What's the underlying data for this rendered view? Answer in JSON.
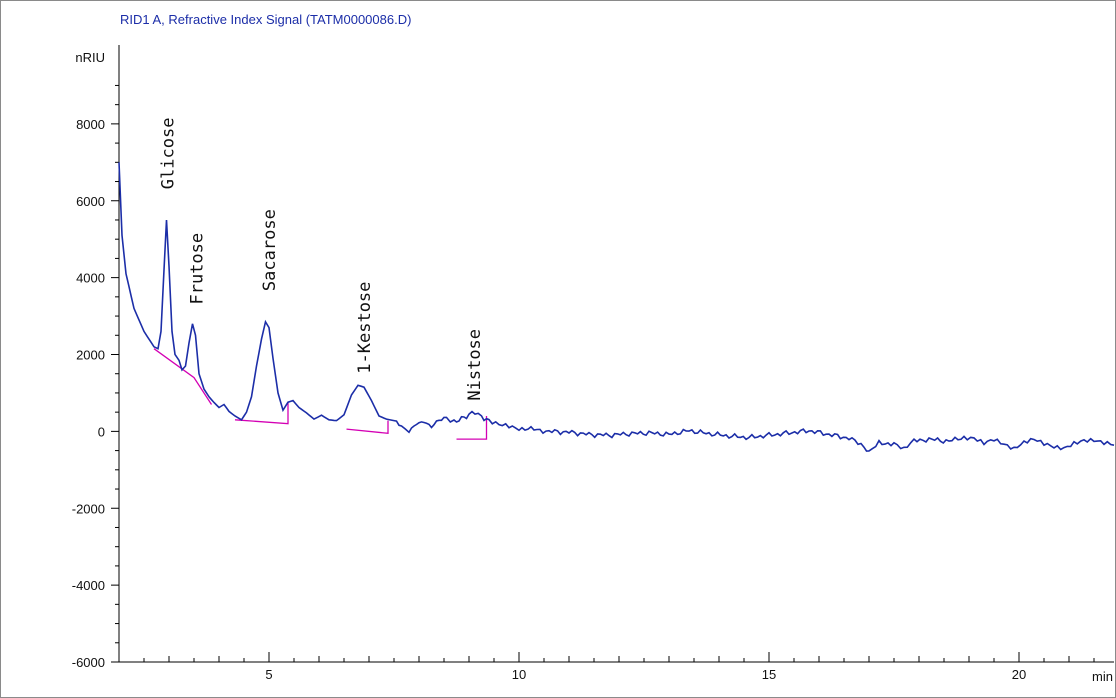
{
  "chart_data": {
    "type": "line",
    "title": "RID1 A, Refractive Index Signal (TATM0000086.D)",
    "ylabel": "nRIU",
    "xlabel": "min",
    "xlim": [
      2.0,
      21.9
    ],
    "ylim": [
      -6000,
      10000
    ],
    "grid": false,
    "x_ticks": [
      5,
      10,
      15,
      20
    ],
    "y_ticks": [
      -6000,
      -4000,
      -2000,
      0,
      2000,
      4000,
      6000,
      8000
    ],
    "series": [
      {
        "color": "#1c2ea8",
        "points": [
          [
            2.0,
            7000
          ],
          [
            2.06,
            5100
          ],
          [
            2.14,
            4100
          ],
          [
            2.3,
            3200
          ],
          [
            2.5,
            2600
          ],
          [
            2.7,
            2200
          ],
          [
            2.78,
            2150
          ],
          [
            2.84,
            2600
          ],
          [
            2.9,
            4200
          ],
          [
            2.95,
            5500
          ],
          [
            3.0,
            4300
          ],
          [
            3.06,
            2600
          ],
          [
            3.12,
            2000
          ],
          [
            3.2,
            1850
          ],
          [
            3.26,
            1600
          ],
          [
            3.33,
            1700
          ],
          [
            3.4,
            2300
          ],
          [
            3.47,
            2800
          ],
          [
            3.53,
            2500
          ],
          [
            3.6,
            1500
          ],
          [
            3.7,
            1100
          ],
          [
            3.8,
            900
          ],
          [
            3.9,
            750
          ],
          [
            4.0,
            620
          ],
          [
            4.1,
            700
          ],
          [
            4.2,
            520
          ],
          [
            4.32,
            400
          ],
          [
            4.45,
            300
          ],
          [
            4.55,
            500
          ],
          [
            4.65,
            900
          ],
          [
            4.75,
            1700
          ],
          [
            4.85,
            2400
          ],
          [
            4.93,
            2850
          ],
          [
            5.0,
            2700
          ],
          [
            5.08,
            1900
          ],
          [
            5.18,
            1000
          ],
          [
            5.28,
            550
          ],
          [
            5.38,
            760
          ],
          [
            5.48,
            800
          ],
          [
            5.6,
            620
          ],
          [
            5.75,
            480
          ],
          [
            5.9,
            320
          ],
          [
            6.05,
            420
          ],
          [
            6.2,
            300
          ],
          [
            6.35,
            280
          ],
          [
            6.5,
            430
          ],
          [
            6.65,
            950
          ],
          [
            6.78,
            1200
          ],
          [
            6.9,
            1150
          ],
          [
            7.05,
            800
          ],
          [
            7.2,
            400
          ],
          [
            7.35,
            320
          ],
          [
            7.5,
            280
          ],
          [
            7.65,
            150
          ],
          [
            7.8,
            0
          ],
          [
            7.95,
            200
          ],
          [
            8.1,
            250
          ],
          [
            8.25,
            120
          ],
          [
            8.4,
            300
          ],
          [
            8.55,
            350
          ],
          [
            8.7,
            250
          ],
          [
            8.85,
            330
          ],
          [
            9.0,
            430
          ],
          [
            9.12,
            480
          ],
          [
            9.25,
            400
          ],
          [
            9.4,
            250
          ],
          [
            9.6,
            180
          ],
          [
            9.8,
            150
          ],
          [
            10.0,
            80
          ],
          [
            10.3,
            50
          ],
          [
            10.6,
            0
          ],
          [
            11.0,
            -20
          ],
          [
            11.4,
            -80
          ],
          [
            11.8,
            -100
          ],
          [
            12.2,
            -60
          ],
          [
            12.6,
            -40
          ],
          [
            13.0,
            -80
          ],
          [
            13.4,
            20
          ],
          [
            13.8,
            -60
          ],
          [
            14.2,
            -120
          ],
          [
            14.6,
            -160
          ],
          [
            15.0,
            -100
          ],
          [
            15.4,
            -40
          ],
          [
            15.8,
            20
          ],
          [
            16.2,
            -80
          ],
          [
            16.6,
            -180
          ],
          [
            16.9,
            -380
          ],
          [
            17.0,
            -560
          ],
          [
            17.2,
            -300
          ],
          [
            17.5,
            -320
          ],
          [
            17.7,
            -480
          ],
          [
            17.9,
            -250
          ],
          [
            18.2,
            -200
          ],
          [
            18.6,
            -260
          ],
          [
            18.9,
            -150
          ],
          [
            19.1,
            -160
          ],
          [
            19.3,
            -300
          ],
          [
            19.5,
            -220
          ],
          [
            19.7,
            -360
          ],
          [
            19.9,
            -480
          ],
          [
            20.1,
            -300
          ],
          [
            20.3,
            -200
          ],
          [
            20.5,
            -300
          ],
          [
            20.7,
            -380
          ],
          [
            20.9,
            -420
          ],
          [
            21.1,
            -300
          ],
          [
            21.3,
            -240
          ],
          [
            21.5,
            -250
          ],
          [
            21.7,
            -320
          ],
          [
            21.9,
            -360
          ]
        ]
      }
    ],
    "baselines": {
      "color": "#d400b4",
      "segments": [
        [
          [
            2.7,
            2150
          ],
          [
            3.5,
            1400
          ],
          [
            3.85,
            700
          ]
        ],
        [
          [
            4.32,
            300
          ],
          [
            5.38,
            200
          ],
          [
            5.38,
            760
          ]
        ],
        [
          [
            6.55,
            60
          ],
          [
            7.38,
            -50
          ],
          [
            7.38,
            280
          ]
        ],
        [
          [
            8.75,
            -200
          ],
          [
            9.35,
            -200
          ],
          [
            9.35,
            400
          ]
        ]
      ]
    },
    "annotations": [
      {
        "text": "Glicose",
        "x": 2.97,
        "y": 6300
      },
      {
        "text": "Frutose",
        "x": 3.55,
        "y": 3300
      },
      {
        "text": "Sacarose",
        "x": 5.0,
        "y": 3650
      },
      {
        "text": "1-Kestose",
        "x": 6.9,
        "y": 1500
      },
      {
        "text": "Nistose",
        "x": 9.1,
        "y": 800
      }
    ]
  }
}
